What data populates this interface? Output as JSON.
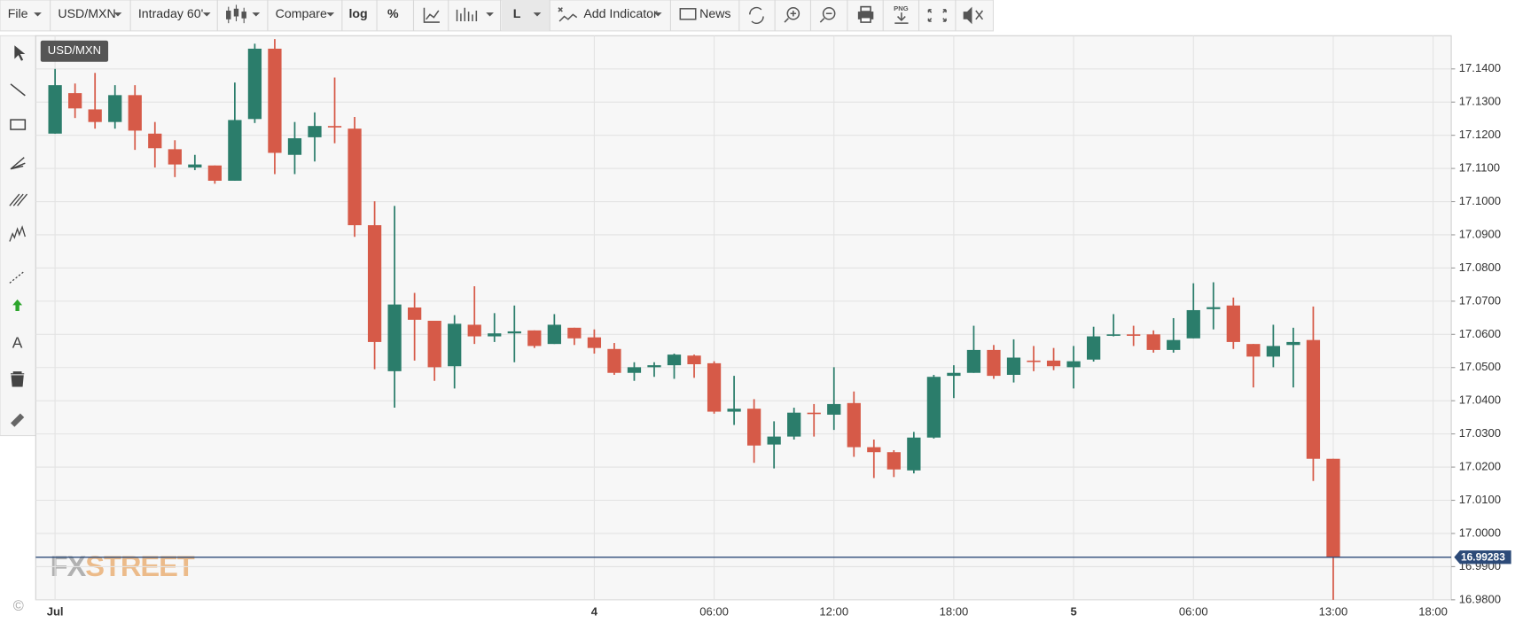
{
  "toolbar": {
    "file": "File",
    "symbol": "USD/MXN",
    "interval": "Intraday 60'",
    "compare": "Compare",
    "log": "log",
    "percent": "%",
    "line": "L",
    "indicator": "Add Indicator",
    "news": "News",
    "png": "PNG"
  },
  "tools": {
    "text": "A"
  },
  "copyright": "©",
  "logo": {
    "fx": "FX",
    "street": "STREET"
  },
  "chart_data": {
    "type": "candlestick",
    "symbol": "USD/MXN",
    "categories": [
      "Jul",
      null,
      null,
      null,
      null,
      null,
      null,
      null,
      null,
      null,
      null,
      null,
      null,
      null,
      null,
      null,
      null,
      null,
      null,
      null,
      null,
      null,
      null,
      null,
      null,
      null,
      null,
      "4",
      null,
      null,
      null,
      null,
      null,
      "06:00",
      null,
      null,
      null,
      null,
      null,
      "12:00",
      null,
      null,
      null,
      null,
      null,
      "18:00",
      null,
      null,
      null,
      null,
      null,
      "5",
      null,
      null,
      null,
      null,
      null,
      "06:00",
      null,
      null,
      null,
      null,
      null,
      null,
      "13:00",
      null,
      null,
      null,
      null,
      "18:00"
    ],
    "open": [
      17.1205,
      17.1327,
      17.1278,
      17.124,
      17.1321,
      17.1205,
      17.1158,
      17.1103,
      17.1109,
      17.1063,
      17.1249,
      17.1461,
      17.1141,
      17.1194,
      17.1228,
      17.122,
      17.0929,
      17.0489,
      17.0681,
      17.0641,
      17.0504,
      17.0629,
      17.0594,
      17.0603,
      17.0612,
      17.0571,
      17.062,
      17.0591,
      17.0556,
      17.0484,
      17.0501,
      17.0507,
      17.0536,
      17.0513,
      17.0367,
      17.0376,
      17.0268,
      17.0292,
      17.0364,
      17.0358,
      17.0393,
      17.026,
      17.0245,
      17.019,
      17.0289,
      17.0475,
      17.0484,
      17.0553,
      17.0478,
      17.0521,
      17.0521,
      17.0501,
      17.0524,
      17.0597,
      17.06,
      17.06,
      17.0553,
      17.0588,
      17.0676,
      17.0687,
      17.0571,
      17.0533,
      17.0568,
      17.0583,
      17.0225,
      null,
      null,
      null,
      null,
      null
    ],
    "high": [
      17.14,
      17.1356,
      17.1388,
      17.1351,
      17.1351,
      17.124,
      17.1185,
      17.1141,
      17.1109,
      17.1359,
      17.1476,
      17.149,
      17.124,
      17.1269,
      17.1374,
      17.1255,
      17.1001,
      17.0987,
      17.0725,
      17.0641,
      17.0658,
      17.0745,
      17.0664,
      17.0687,
      17.0612,
      17.0661,
      17.062,
      17.0615,
      17.0574,
      17.0516,
      17.0516,
      17.0542,
      17.0539,
      17.0519,
      17.0475,
      17.0405,
      17.0338,
      17.0379,
      17.039,
      17.0501,
      17.0428,
      17.0283,
      17.0251,
      17.0306,
      17.0478,
      17.0507,
      17.0626,
      17.0568,
      17.0585,
      17.0565,
      17.0559,
      17.0565,
      17.0623,
      17.0661,
      17.0626,
      17.0612,
      17.0649,
      17.0754,
      17.0757,
      17.0711,
      17.0571,
      17.0629,
      17.062,
      17.0684,
      17.0225,
      null,
      null,
      null,
      null,
      null
    ],
    "low": [
      17.1205,
      17.1252,
      17.122,
      17.122,
      17.1156,
      17.1103,
      17.1074,
      17.1095,
      17.1054,
      17.1063,
      17.1237,
      17.1083,
      17.1083,
      17.1121,
      17.1176,
      17.0894,
      17.0495,
      17.0379,
      17.0521,
      17.046,
      17.0437,
      17.0571,
      17.0577,
      17.0516,
      17.0559,
      17.0571,
      17.0568,
      17.0542,
      17.0478,
      17.046,
      17.0472,
      17.0466,
      17.0469,
      17.0361,
      17.0327,
      17.0213,
      17.0196,
      17.0283,
      17.0292,
      17.0312,
      17.0231,
      17.0167,
      17.017,
      17.0181,
      17.0286,
      17.0408,
      17.0484,
      17.0466,
      17.0455,
      17.0489,
      17.0492,
      17.0437,
      17.0518,
      17.0594,
      17.0565,
      17.0545,
      17.0545,
      17.0588,
      17.0615,
      17.0556,
      17.044,
      17.0501,
      17.044,
      17.0158,
      16.98,
      null,
      null,
      null,
      null,
      null
    ],
    "close": [
      17.1351,
      17.1281,
      17.124,
      17.1321,
      17.1214,
      17.1161,
      17.1112,
      17.1112,
      17.1063,
      17.1246,
      17.1461,
      17.1147,
      17.1191,
      17.1228,
      17.1225,
      17.0929,
      17.0577,
      17.069,
      17.0644,
      17.0501,
      17.0632,
      17.0594,
      17.0603,
      17.0609,
      17.0565,
      17.0629,
      17.0588,
      17.0559,
      17.0484,
      17.0501,
      17.0507,
      17.0539,
      17.051,
      17.0367,
      17.0376,
      17.0265,
      17.0292,
      17.0364,
      17.0361,
      17.039,
      17.026,
      17.0245,
      17.0193,
      17.0289,
      17.0472,
      17.0484,
      17.0553,
      17.0475,
      17.053,
      17.0519,
      17.0504,
      17.0519,
      17.0594,
      17.06,
      17.0597,
      17.0553,
      17.0583,
      17.0673,
      17.0682,
      17.0577,
      17.0533,
      17.0565,
      17.0577,
      17.0225,
      16.99283,
      null,
      null,
      null,
      null,
      null
    ],
    "up_color": "#2b7d6b",
    "down_color": "#d65a48",
    "last_price": 16.99283,
    "last_price_color": "#2c4a78",
    "ylim": [
      16.98,
      17.15
    ],
    "yticks": [
      {
        "value": 16.98,
        "label": "16.9800"
      },
      {
        "value": 16.99,
        "label": "16.9900"
      },
      {
        "value": 17.0,
        "label": "17.0000"
      },
      {
        "value": 17.01,
        "label": "17.0100"
      },
      {
        "value": 17.02,
        "label": "17.0200"
      },
      {
        "value": 17.03,
        "label": "17.0300"
      },
      {
        "value": 17.04,
        "label": "17.0400"
      },
      {
        "value": 17.05,
        "label": "17.0500"
      },
      {
        "value": 17.06,
        "label": "17.0600"
      },
      {
        "value": 17.07,
        "label": "17.0700"
      },
      {
        "value": 17.08,
        "label": "17.0800"
      },
      {
        "value": 17.09,
        "label": "17.0900"
      },
      {
        "value": 17.1,
        "label": "17.1000"
      },
      {
        "value": 17.11,
        "label": "17.1100"
      },
      {
        "value": 17.12,
        "label": "17.1200"
      },
      {
        "value": 17.13,
        "label": "17.1300"
      },
      {
        "value": 17.14,
        "label": "17.1400"
      }
    ],
    "grid": true
  }
}
